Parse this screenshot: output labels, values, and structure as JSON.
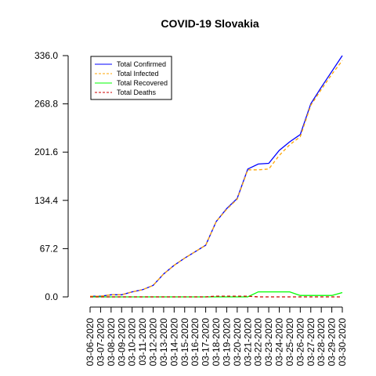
{
  "chart_data": {
    "type": "line",
    "title": "COVID-19 Slovakia",
    "xlabel": "",
    "ylabel": "",
    "ylim": [
      0,
      336
    ],
    "yticks": [
      "0.0",
      "67.2",
      "134.4",
      "201.6",
      "268.8",
      "336.0"
    ],
    "x": [
      "03-06-2020",
      "03-07-2020",
      "03-08-2020",
      "03-09-2020",
      "03-10-2020",
      "03-11-2020",
      "03-12-2020",
      "03-13-2020",
      "03-14-2020",
      "03-15-2020",
      "03-16-2020",
      "03-17-2020",
      "03-18-2020",
      "03-19-2020",
      "03-20-2020",
      "03-21-2020",
      "03-22-2020",
      "03-23-2020",
      "03-24-2020",
      "03-25-2020",
      "03-26-2020",
      "03-27-2020",
      "03-28-2020",
      "03-29-2020",
      "03-30-2020"
    ],
    "series": [
      {
        "name": "Total Confirmed",
        "color": "#0000ff",
        "dash": "solid",
        "values": [
          1,
          1,
          3,
          3,
          7,
          10,
          16,
          32,
          44,
          54,
          63,
          72,
          105,
          123,
          137,
          178,
          185,
          186,
          204,
          216,
          226,
          269,
          292,
          314,
          336
        ]
      },
      {
        "name": "Total Infected",
        "color": "#ffa500",
        "dash": "dashed",
        "values": [
          1,
          1,
          3,
          3,
          7,
          10,
          16,
          32,
          44,
          54,
          63,
          72,
          105,
          122,
          136,
          177,
          177,
          178,
          197,
          212,
          223,
          267,
          289,
          310,
          329
        ]
      },
      {
        "name": "Total Recovered",
        "color": "#00ff00",
        "dash": "solid",
        "values": [
          0,
          0,
          0,
          0,
          0,
          0,
          0,
          0,
          0,
          0,
          0,
          0,
          0,
          0,
          0,
          0,
          7,
          7,
          7,
          7,
          2,
          2,
          2,
          2,
          6
        ]
      },
      {
        "name": "Total Deaths",
        "color": "#cc0000",
        "dash": "dashed",
        "values": [
          0,
          0,
          0,
          0,
          0,
          0,
          0,
          0,
          0,
          0,
          0,
          0,
          1,
          1,
          1,
          1,
          0,
          0,
          0,
          0,
          0,
          0,
          0,
          0,
          0
        ]
      }
    ],
    "legend_position": "top-left",
    "grid": false
  }
}
